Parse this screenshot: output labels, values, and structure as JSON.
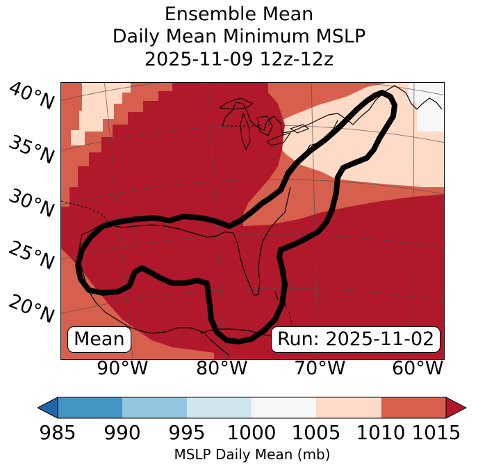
{
  "title": {
    "line1": "Ensemble Mean",
    "line2": "Daily Mean Minimum MSLP",
    "line3": "2025-11-09 12z-12z"
  },
  "lat_labels": [
    "40°N",
    "35°N",
    "30°N",
    "25°N",
    "20°N"
  ],
  "lon_labels": [
    "90°W",
    "80°W",
    "70°W",
    "60°W"
  ],
  "map": {
    "left_box": "Mean",
    "run_box": "Run: 2025-11-02"
  },
  "colorbar": {
    "label": "MSLP Daily Mean (mb)",
    "ticks": [
      "985",
      "990",
      "995",
      "1000",
      "1005",
      "1010",
      "1015"
    ],
    "colors": [
      "#2166ac",
      "#4393c3",
      "#92c5de",
      "#d1e5f0",
      "#f7f7f7",
      "#fddbc7",
      "#d6604d",
      "#b2182b"
    ]
  }
}
